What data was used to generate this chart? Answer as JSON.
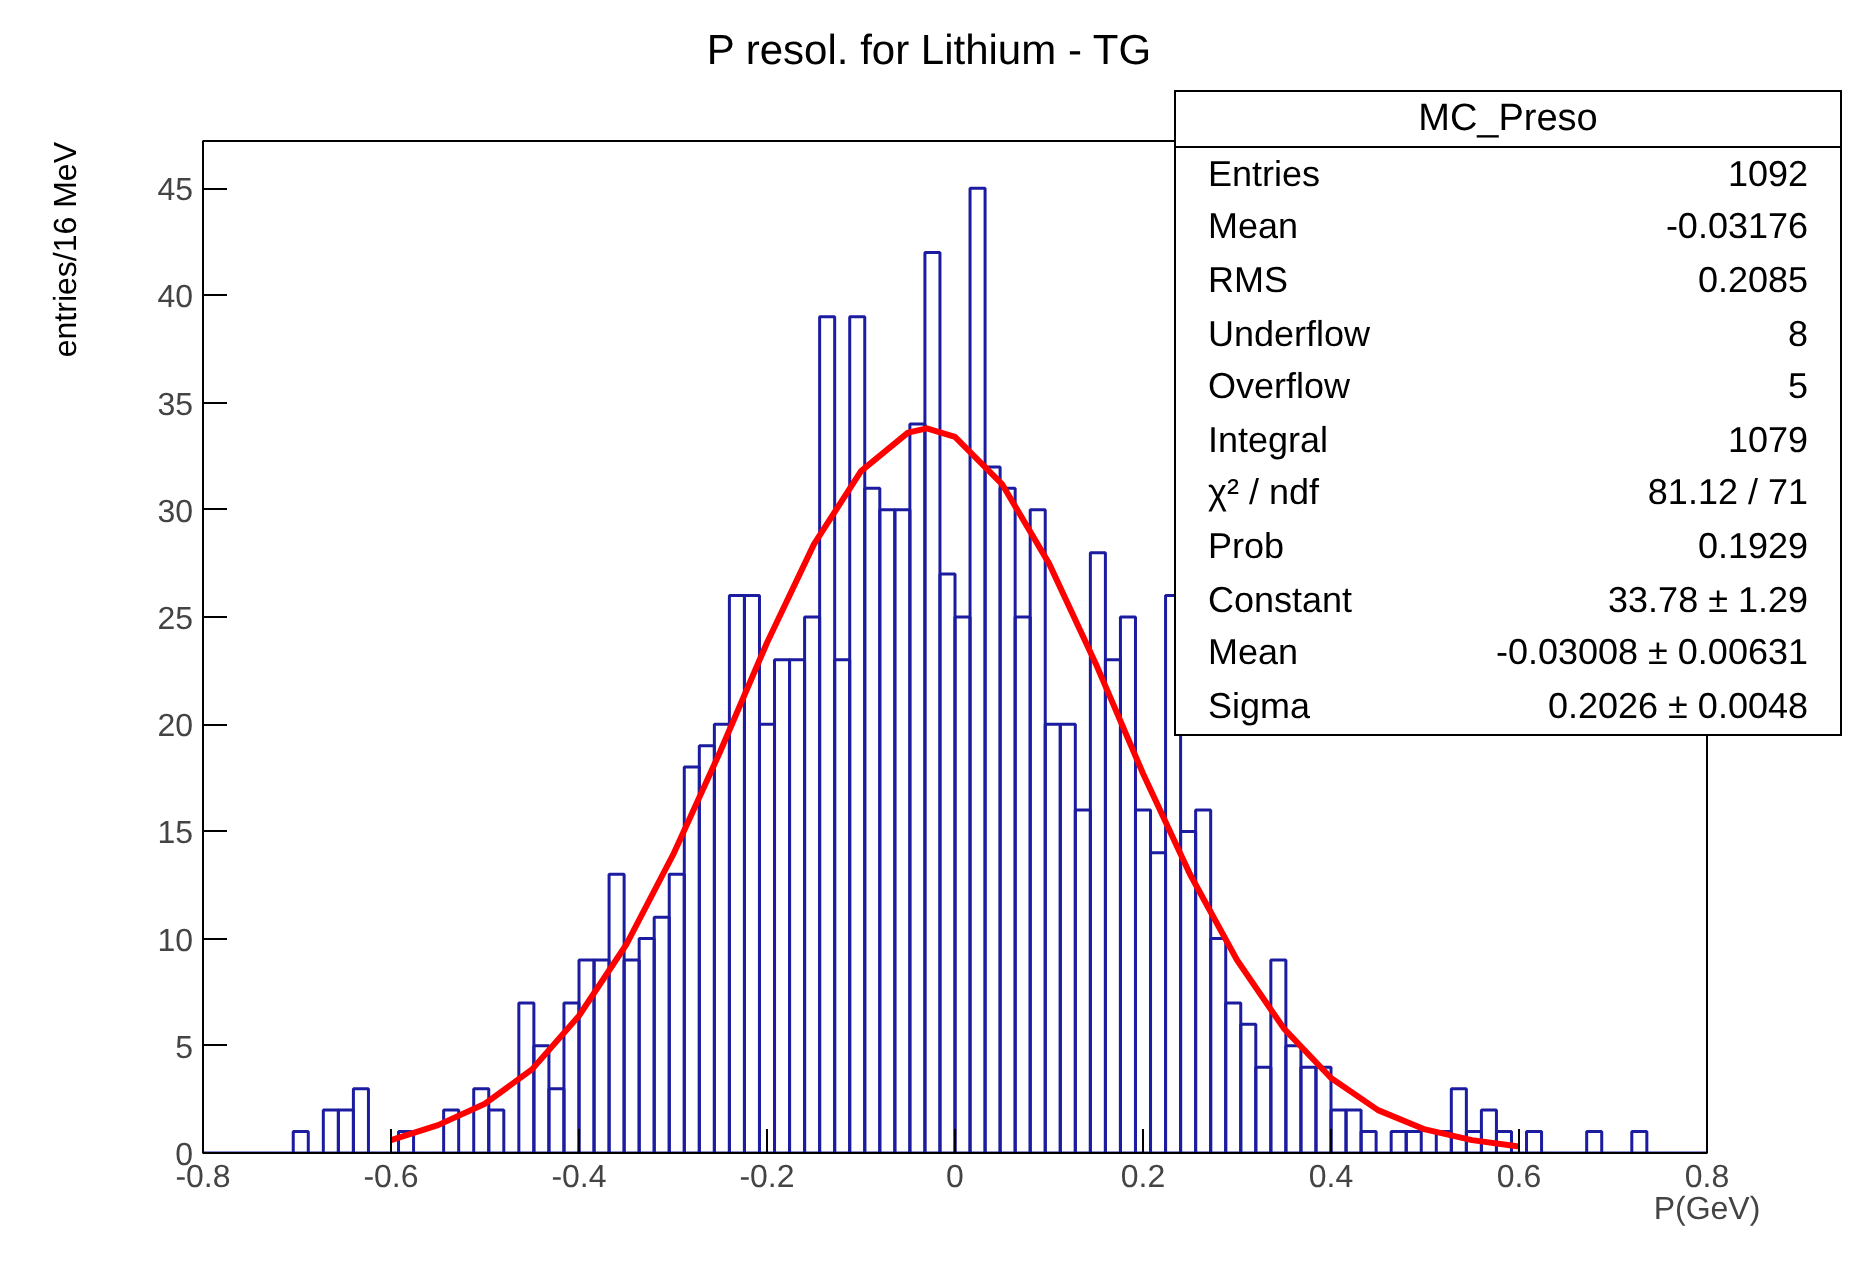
{
  "chart_data": {
    "type": "histogram",
    "title": "P resol. for Lithium - TG",
    "xlabel": "P(GeV)",
    "ylabel": "entries/16 MeV",
    "bins": [
      -0.8,
      -0.784,
      -0.768,
      -0.752,
      -0.736,
      -0.72,
      -0.704,
      -0.688,
      -0.672,
      -0.656,
      -0.64,
      -0.624,
      -0.608,
      -0.592,
      -0.576,
      -0.56,
      -0.544,
      -0.528,
      -0.512,
      -0.496,
      -0.48,
      -0.464,
      -0.448,
      -0.432,
      -0.416,
      -0.4,
      -0.384,
      -0.368,
      -0.352,
      -0.336,
      -0.32,
      -0.304,
      -0.288,
      -0.272,
      -0.256,
      -0.24,
      -0.224,
      -0.208,
      -0.192,
      -0.176,
      -0.16,
      -0.144,
      -0.128,
      -0.112,
      -0.096,
      -0.08,
      -0.064,
      -0.048,
      -0.032,
      -0.016,
      0,
      0.016,
      0.032,
      0.048,
      0.064,
      0.08,
      0.096,
      0.112,
      0.128,
      0.144,
      0.16,
      0.176,
      0.192,
      0.208,
      0.224,
      0.24,
      0.256,
      0.272,
      0.288,
      0.304,
      0.32,
      0.336,
      0.352,
      0.368,
      0.384,
      0.4,
      0.416,
      0.432,
      0.448,
      0.464,
      0.48,
      0.496,
      0.512,
      0.528,
      0.544,
      0.56,
      0.576,
      0.592,
      0.608,
      0.624,
      0.64,
      0.656,
      0.672,
      0.688,
      0.704,
      0.72,
      0.736,
      0.752,
      0.768,
      0.784,
      0.8
    ],
    "values": [
      0,
      0,
      0,
      0,
      0,
      0,
      1,
      0,
      2,
      2,
      3,
      0,
      0,
      1,
      0,
      0,
      2,
      0,
      3,
      2,
      0,
      7,
      5,
      3,
      7,
      9,
      9,
      13,
      9,
      10,
      11,
      13,
      18,
      19,
      20,
      26,
      26,
      20,
      23,
      23,
      25,
      39,
      23,
      39,
      31,
      30,
      30,
      34,
      42,
      27,
      25,
      45,
      32,
      31,
      25,
      30,
      20,
      20,
      16,
      28,
      23,
      25,
      16,
      14,
      26,
      15,
      16,
      10,
      7,
      6,
      4,
      9,
      5,
      4,
      4,
      2,
      2,
      1,
      0,
      1,
      1,
      0,
      1,
      3,
      1,
      2,
      1,
      0,
      1,
      0,
      0,
      0,
      1,
      0,
      0,
      1,
      0,
      0,
      0,
      0
    ],
    "color": "#1c1ca0",
    "series": [
      {
        "type": "line",
        "color": "#ff0000",
        "line_style": "solid",
        "x": [
          -0.6,
          -0.55,
          -0.5,
          -0.45,
          -0.4,
          -0.35,
          -0.3,
          -0.25,
          -0.2,
          -0.15,
          -0.1,
          -0.05,
          -0.03,
          0,
          0.05,
          0.1,
          0.15,
          0.2,
          0.25,
          0.3,
          0.35,
          0.4,
          0.45,
          0.5,
          0.55,
          0.6
        ],
        "values": [
          0.6,
          1.3,
          2.3,
          3.9,
          6.4,
          9.7,
          13.9,
          18.7,
          23.8,
          28.4,
          31.8,
          33.6,
          33.8,
          33.4,
          31.2,
          27.5,
          22.8,
          17.7,
          13.0,
          9.0,
          5.8,
          3.5,
          2.0,
          1.1,
          0.6,
          0.3
        ]
      }
    ],
    "xlim": [
      -0.8,
      0.8
    ],
    "xticks": [
      -0.8,
      -0.6,
      -0.4,
      -0.2,
      0,
      0.2,
      0.4,
      0.6,
      0.8
    ],
    "ylim": [
      0,
      47.2
    ],
    "yticks": [
      0,
      5,
      10,
      15,
      20,
      25,
      30,
      35,
      40,
      45
    ],
    "grid": false,
    "annotations": [
      "MC_Preso",
      "Entries",
      "1092",
      "Mean",
      "-0.03176",
      "RMS",
      "0.2085",
      "Underflow",
      "8",
      "Overflow",
      "5",
      "Integral",
      "1079",
      "χ² / ndf",
      "81.12 / 71",
      "Prob",
      "0.1929",
      "Constant",
      "33.78 ± 1.29",
      "Mean",
      "-0.03008 ± 0.00631",
      "Sigma",
      "0.2026 ± 0.0048"
    ]
  }
}
